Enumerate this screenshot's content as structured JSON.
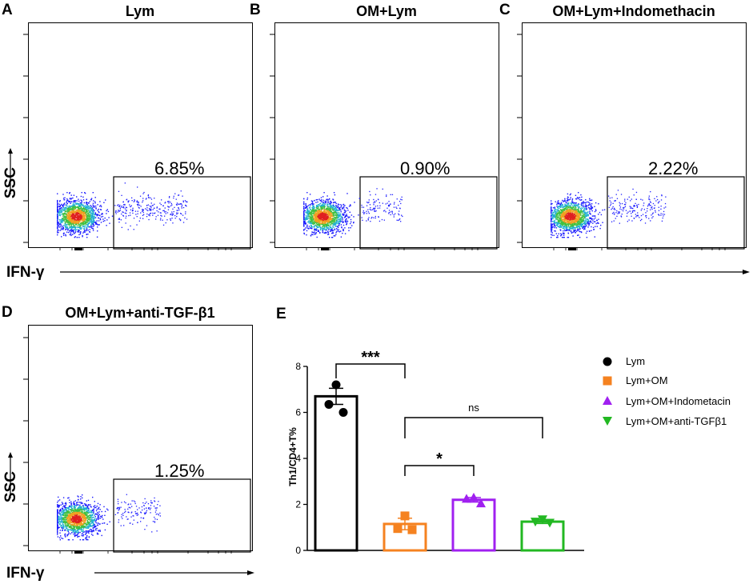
{
  "flow_panels": [
    {
      "letter": "A",
      "title": "Lym",
      "gate_percent": "6.85%",
      "spread": 0.95
    },
    {
      "letter": "B",
      "title": "OM+Lym",
      "gate_percent": "0.90%",
      "spread": 0.55
    },
    {
      "letter": "C",
      "title": "OM+Lym+Indomethacin",
      "gate_percent": "2.22%",
      "spread": 0.75
    },
    {
      "letter": "D",
      "title": "OM+Lym+anti-TGF-β1",
      "gate_percent": "1.25%",
      "spread": 0.6
    }
  ],
  "axis_labels": {
    "y": "SSC",
    "x": "IFN-γ"
  },
  "chart_data": {
    "type": "bar",
    "panel_letter": "E",
    "ylabel": "Th1/CD4+T%",
    "ylim": [
      0,
      8
    ],
    "yticks": [
      "0",
      "2",
      "4",
      "6",
      "8"
    ],
    "categories": [
      "Lym",
      "Lym+OM",
      "Lym+OM+Indometacin",
      "Lym+OM+anti-TGFβ1"
    ],
    "values": [
      6.7,
      1.15,
      2.2,
      1.25
    ],
    "errors": [
      0.35,
      0.25,
      0.1,
      0.08
    ],
    "points": [
      [
        7.2,
        6.35,
        6.0
      ],
      [
        1.5,
        0.95,
        0.9
      ],
      [
        2.3,
        2.25,
        2.05
      ],
      [
        1.35,
        1.25,
        1.2
      ]
    ],
    "colors": [
      "#000000",
      "#f58220",
      "#a020f0",
      "#22b822"
    ],
    "markers": [
      "circle",
      "square",
      "triangle-up",
      "triangle-down"
    ],
    "legend": [
      "Lym",
      "Lym+OM",
      "Lym+OM+Indometacin",
      "Lym+OM+anti-TGFβ1"
    ],
    "significance": [
      {
        "from": 0,
        "to": 1,
        "label": "***"
      },
      {
        "from": 1,
        "to": 3,
        "label": "ns"
      },
      {
        "from": 1,
        "to": 2,
        "label": "*"
      }
    ]
  }
}
